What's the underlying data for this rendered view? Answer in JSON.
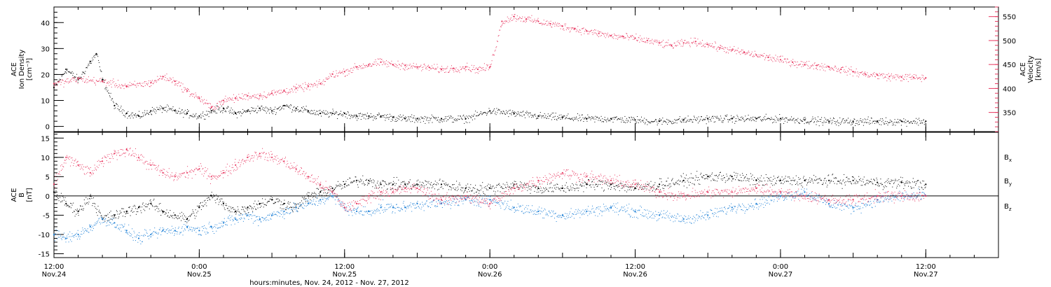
{
  "colors": {
    "black": "#000000",
    "pink": "#e8365f",
    "blue": "#1c7fd6"
  },
  "chart_data": [
    {
      "type": "scatter",
      "xlim": [
        0,
        78
      ],
      "ylim": [
        -2,
        46
      ],
      "ylim_right": [
        310,
        570
      ],
      "ylabel_lines": [
        "ACE",
        "Ion Density",
        "[cm⁻³]"
      ],
      "ylabel_right_lines": [
        "ACE",
        "Velocity",
        "[km/s]"
      ],
      "yticks": [
        0,
        10,
        20,
        30,
        40
      ],
      "yticks_right": [
        350,
        400,
        450,
        500,
        550
      ],
      "series": [
        {
          "axis": "left",
          "color": "#000000",
          "x": [
            0,
            1,
            2,
            3,
            3.5,
            4,
            5,
            6,
            7,
            8,
            9,
            10,
            11,
            12,
            13,
            14,
            15,
            16,
            17,
            18,
            19,
            20,
            21,
            22,
            23,
            24,
            25,
            26,
            27,
            28,
            29,
            30,
            32,
            34,
            36,
            38,
            40,
            42,
            44,
            46,
            48,
            50,
            52,
            54,
            56,
            58,
            60,
            62,
            64,
            66,
            68,
            70,
            72
          ],
          "y": [
            15,
            22,
            18,
            25,
            28,
            18,
            8,
            5,
            4,
            6,
            7,
            6,
            5,
            4,
            6,
            7,
            5,
            6,
            7,
            6,
            8,
            7,
            6,
            5,
            5,
            5,
            4,
            4,
            4,
            3.5,
            3,
            3,
            3,
            3,
            6,
            5,
            4,
            3.5,
            3,
            3,
            2.5,
            2,
            2.5,
            3,
            3,
            3,
            3,
            2.5,
            2,
            2,
            2,
            2,
            2
          ]
        },
        {
          "axis": "right",
          "color": "#e8365f",
          "x": [
            0,
            2,
            4,
            6,
            8,
            9,
            10,
            11,
            12,
            13,
            14,
            15,
            16,
            17,
            18,
            19,
            20,
            21,
            22,
            23,
            24,
            25,
            26,
            27,
            28,
            29,
            30,
            31,
            32,
            33,
            34,
            35,
            36,
            37,
            38,
            39,
            40,
            41,
            42,
            43,
            44,
            45,
            46,
            47,
            48,
            49,
            50,
            51,
            52,
            53,
            54,
            55,
            56,
            57,
            58,
            59,
            60,
            61,
            62,
            63,
            64,
            65,
            66,
            67,
            68,
            69,
            70,
            71,
            72
          ],
          "y": [
            410,
            420,
            415,
            405,
            412,
            425,
            415,
            395,
            380,
            360,
            375,
            380,
            385,
            385,
            390,
            395,
            400,
            405,
            410,
            430,
            435,
            445,
            450,
            455,
            450,
            448,
            445,
            444,
            440,
            442,
            445,
            440,
            445,
            540,
            550,
            545,
            540,
            535,
            530,
            525,
            520,
            515,
            510,
            508,
            505,
            500,
            495,
            490,
            495,
            498,
            492,
            485,
            480,
            475,
            470,
            465,
            460,
            455,
            450,
            448,
            445,
            440,
            435,
            430,
            428,
            425,
            424,
            423,
            422
          ]
        }
      ]
    },
    {
      "type": "scatter",
      "xlim": [
        0,
        78
      ],
      "ylim": [
        -16,
        16.5
      ],
      "ylabel_lines": [
        "ACE",
        "B",
        "[nT]"
      ],
      "yticks": [
        -15,
        -10,
        -5,
        0,
        5,
        10,
        15
      ],
      "xticks": [
        {
          "x": 0,
          "line1": "12:00",
          "line2": "Nov.24"
        },
        {
          "x": 12,
          "line1": "0:00",
          "line2": "Nov.25"
        },
        {
          "x": 24,
          "line1": "12:00",
          "line2": "Nov.25"
        },
        {
          "x": 36,
          "line1": "0:00",
          "line2": "Nov.26"
        },
        {
          "x": 48,
          "line1": "12:00",
          "line2": "Nov.26"
        },
        {
          "x": 60,
          "line1": "0:00",
          "line2": "Nov.27"
        },
        {
          "x": 72,
          "line1": "12:00",
          "line2": "Nov.27"
        }
      ],
      "xlabel": "hours:minutes, Nov. 24, 2012 - Nov. 27, 2012",
      "legend": [
        {
          "label": "B",
          "sub": "x",
          "color": "#000000"
        },
        {
          "label": "B",
          "sub": "y",
          "color": "#1c7fd6"
        },
        {
          "label": "B",
          "sub": "z",
          "color": "#e8365f"
        }
      ],
      "series": [
        {
          "name": "Bx",
          "color": "#000000",
          "x": [
            0,
            1,
            2,
            3,
            4,
            5,
            6,
            7,
            8,
            9,
            10,
            11,
            12,
            13,
            14,
            15,
            16,
            17,
            18,
            19,
            20,
            21,
            22,
            23,
            24,
            25,
            26,
            27,
            28,
            29,
            30,
            32,
            34,
            36,
            38,
            40,
            42,
            44,
            46,
            48,
            50,
            52,
            54,
            56,
            58,
            60,
            62,
            64,
            66,
            68,
            70,
            72
          ],
          "y": [
            1,
            -2,
            -4,
            0,
            -6,
            -5,
            -4,
            -3,
            -2,
            -4,
            -5,
            -6,
            -3,
            0,
            -2,
            -4,
            -3,
            -2,
            -1,
            -2,
            -3,
            0,
            1,
            2,
            3,
            4,
            4,
            3,
            3,
            3,
            3,
            3,
            2,
            2,
            3,
            2,
            2,
            3,
            3,
            2,
            3,
            4,
            5,
            5,
            4,
            4,
            4,
            4,
            4,
            3.5,
            3.5,
            3
          ]
        },
        {
          "name": "By",
          "color": "#1c7fd6",
          "x": [
            0,
            1,
            2,
            3,
            4,
            5,
            6,
            7,
            8,
            9,
            10,
            11,
            12,
            13,
            14,
            15,
            16,
            17,
            18,
            19,
            20,
            21,
            22,
            23,
            24,
            25,
            26,
            27,
            28,
            29,
            30,
            32,
            34,
            36,
            38,
            40,
            42,
            44,
            46,
            48,
            50,
            52,
            54,
            56,
            58,
            60,
            62,
            64,
            66,
            68,
            70,
            72
          ],
          "y": [
            -10,
            -11,
            -10,
            -8,
            -6,
            -7,
            -9,
            -11,
            -10,
            -9,
            -9,
            -8,
            -9,
            -8,
            -7,
            -6,
            -5,
            -6,
            -5,
            -4,
            -3,
            -2,
            -1,
            0,
            -3,
            -4,
            -4,
            -3,
            -3,
            -3,
            -2,
            -2,
            -1,
            -1,
            -3,
            -4,
            -5,
            -4,
            -3,
            -4,
            -5,
            -6,
            -5,
            -3,
            -2,
            0,
            1,
            -2,
            -3,
            -1,
            0,
            0
          ]
        },
        {
          "name": "Bz",
          "color": "#e8365f",
          "x": [
            0,
            1,
            2,
            3,
            4,
            5,
            6,
            7,
            8,
            9,
            10,
            11,
            12,
            13,
            14,
            15,
            16,
            17,
            18,
            19,
            20,
            21,
            22,
            23,
            24,
            25,
            26,
            27,
            28,
            29,
            30,
            32,
            34,
            36,
            38,
            40,
            42,
            44,
            46,
            48,
            50,
            52,
            54,
            56,
            58,
            60,
            62,
            64,
            66,
            68,
            70,
            72
          ],
          "y": [
            3,
            10,
            8,
            6,
            9,
            11,
            12,
            10,
            8,
            6,
            5,
            6,
            7,
            5,
            6,
            8,
            10,
            11,
            10,
            9,
            7,
            5,
            3,
            1,
            -3,
            -2,
            0,
            1,
            1,
            2,
            2,
            -1,
            0,
            -2,
            2,
            4,
            6,
            5,
            4,
            3,
            1,
            0,
            1,
            1,
            2,
            1,
            0,
            -1,
            -1,
            0,
            0,
            0
          ]
        }
      ]
    }
  ]
}
